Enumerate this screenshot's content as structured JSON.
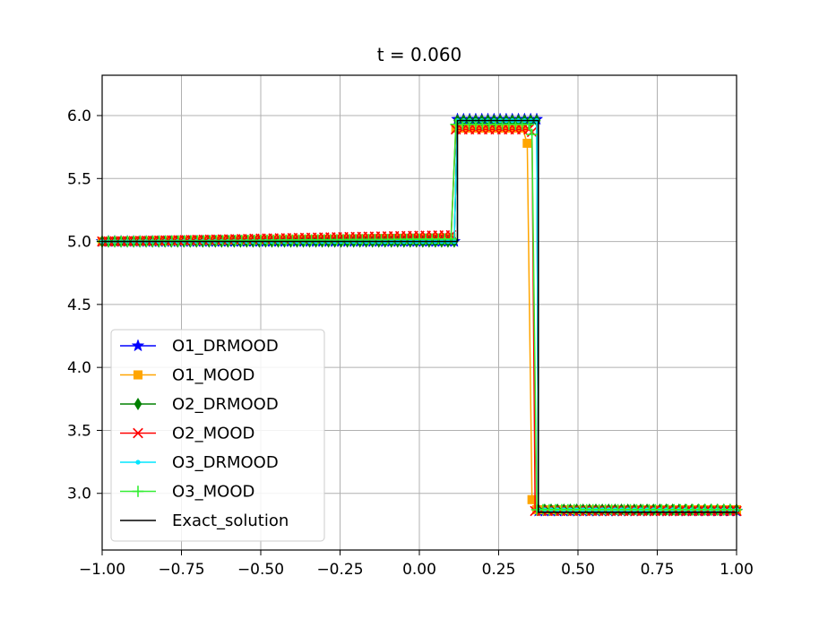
{
  "chart_data": {
    "type": "line",
    "title": "t = 0.060",
    "xlabel": "",
    "ylabel": "",
    "xlim": [
      -1.0,
      1.0
    ],
    "ylim": [
      2.55,
      6.32
    ],
    "xticks": [
      -1.0,
      -0.75,
      -0.5,
      -0.25,
      0.0,
      0.25,
      0.5,
      0.75,
      1.0
    ],
    "xtick_labels": [
      "−1.00",
      "−0.75",
      "−0.50",
      "−0.25",
      "0.00",
      "0.25",
      "0.50",
      "0.75",
      "1.00"
    ],
    "yticks": [
      3.0,
      3.5,
      4.0,
      4.5,
      5.0,
      5.5,
      6.0
    ],
    "ytick_labels": [
      "3.0",
      "3.5",
      "4.0",
      "4.5",
      "5.0",
      "5.5",
      "6.0"
    ],
    "grid": true,
    "legend_position": "lower-left",
    "series": [
      {
        "name": "O1_DRMOOD",
        "color": "#0000ff",
        "marker": "star",
        "points": [
          [
            -1.0,
            5.0
          ],
          [
            0.11,
            5.0
          ],
          [
            0.12,
            5.97
          ],
          [
            0.37,
            5.97
          ],
          [
            0.375,
            2.86
          ],
          [
            1.0,
            2.86
          ]
        ]
      },
      {
        "name": "O1_MOOD",
        "color": "#ffa500",
        "marker": "square",
        "points": [
          [
            -1.0,
            5.0
          ],
          [
            0.1,
            5.03
          ],
          [
            0.115,
            5.9
          ],
          [
            0.325,
            5.9
          ],
          [
            0.34,
            5.78
          ],
          [
            0.355,
            2.95
          ],
          [
            0.37,
            2.87
          ],
          [
            1.0,
            2.87
          ]
        ]
      },
      {
        "name": "O2_DRMOOD",
        "color": "#008000",
        "marker": "diamond",
        "points": [
          [
            -1.0,
            5.0
          ],
          [
            0.11,
            5.0
          ],
          [
            0.12,
            5.96
          ],
          [
            0.37,
            5.96
          ],
          [
            0.375,
            2.87
          ],
          [
            1.0,
            2.87
          ]
        ]
      },
      {
        "name": "O2_MOOD",
        "color": "#ff0000",
        "marker": "x",
        "points": [
          [
            -1.0,
            5.0
          ],
          [
            0.1,
            5.05
          ],
          [
            0.115,
            5.89
          ],
          [
            0.345,
            5.89
          ],
          [
            0.355,
            5.87
          ],
          [
            0.365,
            2.86
          ],
          [
            1.0,
            2.86
          ]
        ]
      },
      {
        "name": "O3_DRMOOD",
        "color": "#00e5ff",
        "marker": "dot",
        "points": [
          [
            -1.0,
            5.0
          ],
          [
            0.11,
            5.0
          ],
          [
            0.12,
            5.96
          ],
          [
            0.37,
            5.96
          ],
          [
            0.375,
            2.87
          ],
          [
            1.0,
            2.87
          ]
        ]
      },
      {
        "name": "O3_MOOD",
        "color": "#33ee33",
        "marker": "plus",
        "points": [
          [
            -1.0,
            5.0
          ],
          [
            0.1,
            5.02
          ],
          [
            0.115,
            5.93
          ],
          [
            0.345,
            5.93
          ],
          [
            0.355,
            5.85
          ],
          [
            0.37,
            2.87
          ],
          [
            1.0,
            2.87
          ]
        ]
      },
      {
        "name": "Exact_solution",
        "color": "#000000",
        "marker": "none",
        "points": [
          [
            -1.0,
            5.0
          ],
          [
            0.12,
            5.0
          ],
          [
            0.12,
            5.96
          ],
          [
            0.375,
            5.96
          ],
          [
            0.375,
            2.85
          ],
          [
            1.0,
            2.85
          ]
        ]
      }
    ]
  }
}
